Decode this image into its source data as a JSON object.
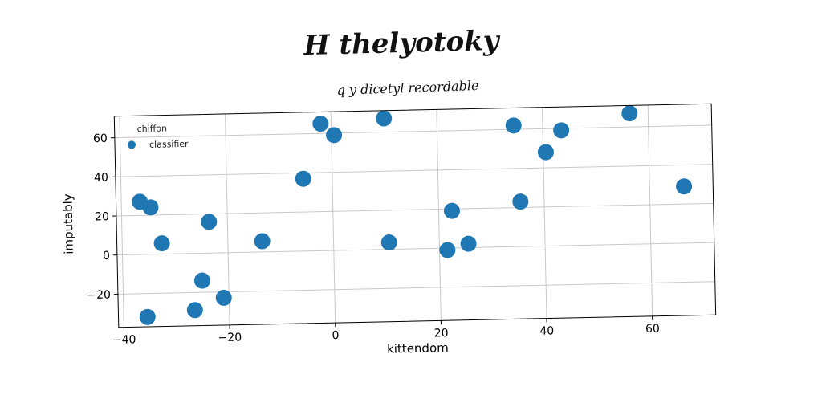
{
  "title": "H thelyotoky",
  "colors": {
    "point": "#1f77b4",
    "grid": "#c8c8c8",
    "axis": "#000000"
  },
  "chart_data": {
    "type": "scatter",
    "title": "q y dicetyl recordable",
    "xlabel": "kittendom",
    "ylabel": "imputably",
    "xlim": [
      -41,
      72
    ],
    "ylim": [
      -37,
      71
    ],
    "xticks": [
      -40,
      -20,
      0,
      20,
      40,
      60
    ],
    "yticks": [
      -20,
      0,
      20,
      40,
      60
    ],
    "grid": true,
    "legend": {
      "title": "chiffon",
      "placement": "top-left",
      "entries": [
        "classifier"
      ]
    },
    "series": [
      {
        "name": "classifier",
        "points": [
          [
            -2,
            65
          ],
          [
            10,
            67
          ],
          [
            56.5,
            67
          ],
          [
            0.5,
            59
          ],
          [
            34.5,
            62
          ],
          [
            43.5,
            59
          ],
          [
            40.5,
            48
          ],
          [
            -5.5,
            37
          ],
          [
            -36.5,
            27
          ],
          [
            -34.5,
            24
          ],
          [
            -23.5,
            16
          ],
          [
            -32.5,
            5.5
          ],
          [
            -13.5,
            5.5
          ],
          [
            10.5,
            3.5
          ],
          [
            22.5,
            19
          ],
          [
            35.5,
            23
          ],
          [
            66.5,
            29
          ],
          [
            25.5,
            2
          ],
          [
            21.5,
            -1
          ],
          [
            -25,
            -14
          ],
          [
            -21,
            -23
          ],
          [
            -26.5,
            -29
          ],
          [
            -35.5,
            -32
          ]
        ]
      }
    ]
  }
}
